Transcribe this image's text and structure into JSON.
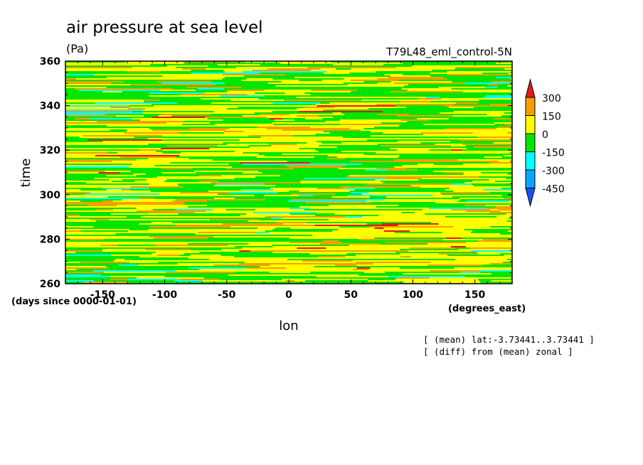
{
  "chart_data": {
    "type": "heatmap",
    "title": "air pressure at sea level",
    "units": "(Pa)",
    "run_label": "T79L48_eml_control-5N",
    "xlabel": "lon",
    "ylabel": "time",
    "x_units": "(degrees_east)",
    "y_units": "(days since 0000-01-01)",
    "xlim": [
      -180,
      180
    ],
    "ylim": [
      260,
      360
    ],
    "x_ticks": [
      -150,
      -100,
      -50,
      0,
      50,
      100,
      150
    ],
    "y_ticks": [
      260,
      280,
      300,
      320,
      340,
      360
    ],
    "annotations": [
      "[ (mean) lat:-3.73441..3.73441 ]",
      "[ (diff) from (mean) zonal ]"
    ],
    "colorbar": {
      "labels": [
        "300",
        "150",
        "0",
        "-150",
        "-300",
        "-450"
      ],
      "levels": [
        300,
        150,
        0,
        -150,
        -300,
        -450
      ],
      "bins": [
        {
          "range": "> 300",
          "color": "#e61919"
        },
        {
          "range": "150 to 300",
          "color": "#f5a000"
        },
        {
          "range": "0 to 150",
          "color": "#ffff00"
        },
        {
          "range": "-150 to 0",
          "color": "#00e600"
        },
        {
          "range": "-300 to -150",
          "color": "#00ffff"
        },
        {
          "range": "-450 to -300",
          "color": "#0aa5ff"
        },
        {
          "range": "< -450",
          "color": "#1e50ff"
        }
      ]
    }
  }
}
